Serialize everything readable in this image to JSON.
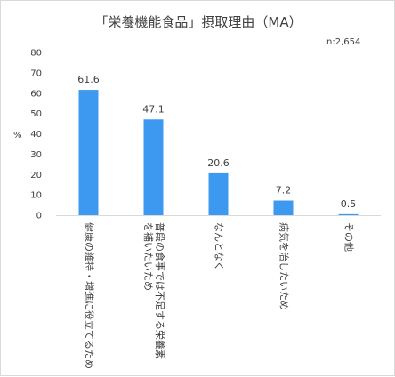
{
  "chart_data": {
    "type": "bar",
    "title": "「栄養機能食品」摂取理由（MA）",
    "note": "n:2,654",
    "ylabel": "%",
    "xlabel": "",
    "ylim": [
      0,
      80
    ],
    "yticks": [
      "0",
      "10",
      "20",
      "30",
      "40",
      "50",
      "60",
      "70",
      "80"
    ],
    "grid": false,
    "bar_color": "#3d99f0",
    "categories": [
      [
        "健康の維持・増進に役立てるため"
      ],
      [
        "普段の食事では不足する栄養素",
        "を補いたいため"
      ],
      [
        "なんとなく"
      ],
      [
        "病気を治したいため"
      ],
      [
        "その他"
      ]
    ],
    "values": [
      61.6,
      47.1,
      20.6,
      7.2,
      0.5
    ],
    "data_labels": [
      "61.6",
      "47.1",
      "20.6",
      "7.2",
      "0.5"
    ]
  }
}
